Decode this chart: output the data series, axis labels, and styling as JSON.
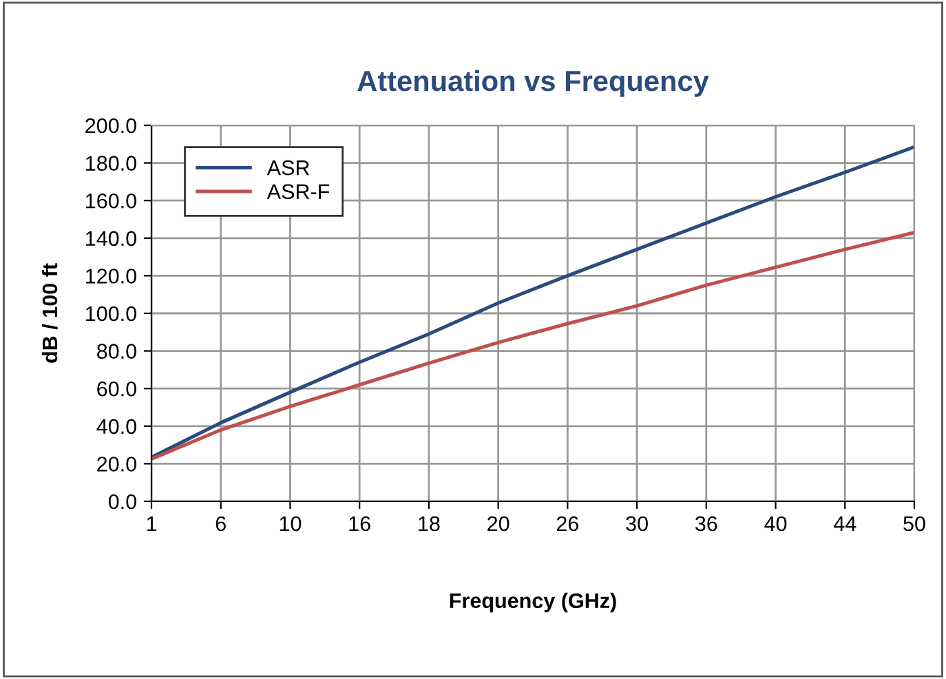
{
  "chart_data": {
    "type": "line",
    "title": "Attenuation vs Frequency",
    "xlabel": "Frequency (GHz)",
    "ylabel": "dB / 100 ft",
    "categories": [
      "1",
      "6",
      "10",
      "16",
      "18",
      "20",
      "26",
      "30",
      "36",
      "40",
      "44",
      "50"
    ],
    "series": [
      {
        "name": "ASR",
        "color": "#2b4a7e",
        "values": [
          23.4,
          41.8,
          58,
          74,
          89,
          105.5,
          120,
          134,
          148,
          162,
          175,
          188.5
        ]
      },
      {
        "name": "ASR-F",
        "color": "#c0504d",
        "values": [
          22.5,
          38,
          50.5,
          62,
          73.5,
          84.5,
          94.5,
          104,
          115,
          124.5,
          134,
          143
        ]
      }
    ],
    "ylim": [
      0,
      200
    ],
    "yticks": [
      {
        "value": 0,
        "label": "0.0"
      },
      {
        "value": 20,
        "label": "20.0"
      },
      {
        "value": 40,
        "label": "40.0"
      },
      {
        "value": 60,
        "label": "60.0"
      },
      {
        "value": 80,
        "label": "80.0"
      },
      {
        "value": 100,
        "label": "100.0"
      },
      {
        "value": 120,
        "label": "120.0"
      },
      {
        "value": 140,
        "label": "140.0"
      },
      {
        "value": 160,
        "label": "160.0"
      },
      {
        "value": 180,
        "label": "180.0"
      },
      {
        "value": 200,
        "label": "200.0"
      }
    ],
    "grid": true,
    "legend": "top left",
    "marker": "none",
    "line_style": "solid"
  }
}
